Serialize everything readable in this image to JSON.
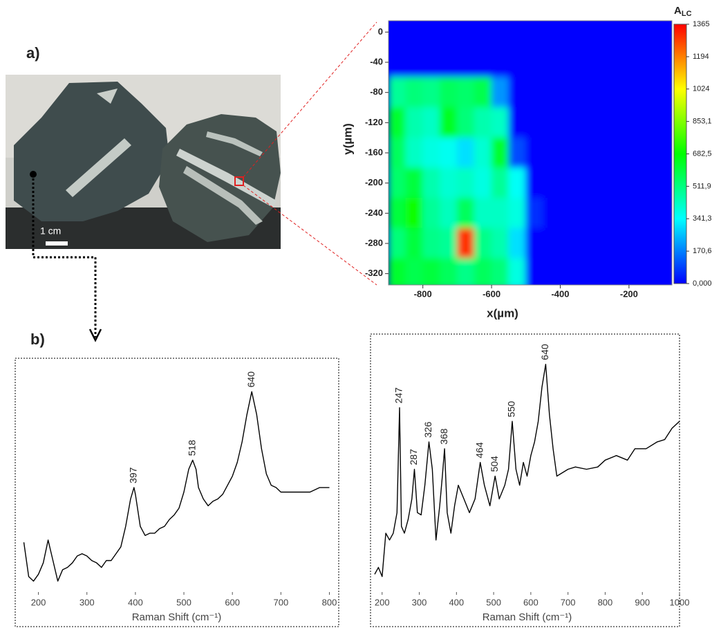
{
  "panel_labels": [
    "a)",
    "b)"
  ],
  "photo": {
    "scale_label": "1 cm"
  },
  "chart_data": [
    {
      "type": "heatmap",
      "xlabel": "x(µm)",
      "ylabel": "y(µm)",
      "x": [
        -875,
        -825,
        -775,
        -725,
        -675,
        -625,
        -575,
        -525,
        -475,
        -425,
        -375,
        -325,
        -275,
        -225,
        -175,
        -125,
        -75
      ],
      "y": [
        0,
        -40,
        -80,
        -120,
        -160,
        -200,
        -240,
        -280,
        -320
      ],
      "z": [
        [
          0,
          0,
          0,
          0,
          0,
          0,
          0,
          0,
          0,
          0,
          0,
          0,
          0,
          0,
          0,
          0,
          0
        ],
        [
          0,
          0,
          0,
          0,
          0,
          0,
          0,
          0,
          0,
          0,
          0,
          0,
          0,
          0,
          0,
          0,
          0
        ],
        [
          480,
          520,
          500,
          560,
          540,
          580,
          200,
          0,
          0,
          0,
          0,
          0,
          0,
          0,
          0,
          0,
          0
        ],
        [
          620,
          450,
          420,
          640,
          520,
          450,
          420,
          0,
          0,
          0,
          0,
          0,
          0,
          0,
          0,
          0,
          0
        ],
        [
          560,
          420,
          380,
          360,
          300,
          400,
          620,
          100,
          0,
          0,
          0,
          0,
          0,
          0,
          0,
          0,
          0
        ],
        [
          540,
          600,
          450,
          400,
          420,
          380,
          480,
          350,
          0,
          0,
          0,
          0,
          0,
          0,
          0,
          0,
          0
        ],
        [
          600,
          700,
          480,
          430,
          560,
          420,
          420,
          380,
          60,
          0,
          0,
          0,
          0,
          0,
          0,
          0,
          0
        ],
        [
          520,
          600,
          500,
          480,
          1300,
          500,
          450,
          300,
          0,
          0,
          0,
          0,
          0,
          0,
          0,
          0,
          0
        ],
        [
          620,
          580,
          600,
          560,
          500,
          560,
          520,
          380,
          0,
          0,
          0,
          0,
          0,
          0,
          0,
          0,
          0
        ]
      ],
      "xlim": [
        -900,
        -75
      ],
      "ylim": [
        -335,
        15
      ],
      "xticks": [
        -800,
        -600,
        -400,
        -200
      ],
      "yticks": [
        0,
        -40,
        -80,
        -120,
        -160,
        -200,
        -240,
        -280,
        -320
      ],
      "colorbar": {
        "title": "A",
        "subscript": "LC",
        "zlim": [
          0,
          1365
        ],
        "colors": [
          "#0000ff",
          "#00ffff",
          "#00ff00",
          "#ffff00",
          "#ff0000"
        ],
        "ticks": [
          1365,
          1194,
          1024,
          {
            "value": 853.1,
            "label": "853,1"
          },
          {
            "value": 682.5,
            "label": "682,5"
          },
          {
            "value": 511.9,
            "label": "511,9"
          },
          {
            "value": 341.3,
            "label": "341,3"
          },
          {
            "value": 170.6,
            "label": "170,6"
          },
          {
            "value": 0,
            "label": "0,000"
          }
        ]
      }
    },
    {
      "type": "line",
      "xlabel": "Raman Shift (cm⁻¹)",
      "color": "#000000",
      "x": [
        170,
        180,
        190,
        200,
        210,
        220,
        230,
        240,
        250,
        260,
        270,
        280,
        290,
        300,
        310,
        320,
        330,
        340,
        350,
        360,
        370,
        380,
        390,
        397,
        400,
        410,
        420,
        430,
        440,
        450,
        460,
        470,
        480,
        490,
        500,
        510,
        518,
        525,
        530,
        540,
        550,
        560,
        570,
        580,
        590,
        600,
        610,
        620,
        630,
        640,
        650,
        660,
        670,
        680,
        690,
        700,
        720,
        740,
        760,
        780,
        800
      ],
      "values": [
        23,
        8,
        6,
        9,
        14,
        24,
        15,
        6,
        11,
        12,
        14,
        17,
        18,
        17,
        15,
        14,
        12,
        15,
        15,
        18,
        21,
        30,
        42,
        47,
        44,
        30,
        26,
        27,
        27,
        29,
        30,
        33,
        35,
        38,
        45,
        55,
        59,
        55,
        47,
        42,
        39,
        41,
        42,
        44,
        48,
        52,
        58,
        67,
        79,
        89,
        79,
        64,
        53,
        48,
        47,
        45,
        45,
        45,
        45,
        47,
        47
      ],
      "peaks": [
        397,
        518,
        640
      ],
      "xlim": [
        165,
        805
      ],
      "ylim": [
        0,
        100
      ],
      "xticks": [
        200,
        300,
        400,
        500,
        600,
        700,
        800
      ]
    },
    {
      "type": "line",
      "xlabel": "Raman Shift (cm⁻¹)",
      "color": "#000000",
      "x": [
        180,
        190,
        200,
        210,
        220,
        230,
        240,
        247,
        252,
        260,
        270,
        280,
        287,
        295,
        305,
        315,
        326,
        335,
        345,
        355,
        362,
        368,
        375,
        385,
        395,
        405,
        420,
        435,
        450,
        464,
        475,
        490,
        504,
        515,
        530,
        540,
        550,
        560,
        570,
        580,
        590,
        600,
        610,
        620,
        630,
        640,
        650,
        660,
        670,
        680,
        700,
        720,
        750,
        780,
        800,
        830,
        860,
        880,
        910,
        940,
        960,
        980,
        1000
      ],
      "values": [
        9,
        12,
        8,
        27,
        24,
        27,
        36,
        82,
        30,
        27,
        33,
        42,
        55,
        36,
        35,
        48,
        67,
        55,
        24,
        39,
        52,
        64,
        36,
        27,
        39,
        48,
        42,
        36,
        42,
        58,
        48,
        39,
        52,
        42,
        48,
        55,
        76,
        55,
        48,
        58,
        52,
        61,
        67,
        76,
        91,
        101,
        79,
        64,
        52,
        53,
        55,
        56,
        55,
        56,
        59,
        61,
        59,
        64,
        64,
        67,
        68,
        73,
        76
      ],
      "peaks": [
        247,
        287,
        326,
        368,
        464,
        504,
        550,
        640
      ],
      "xlim": [
        180,
        1000
      ],
      "ylim": [
        0,
        110
      ],
      "xticks": [
        200,
        300,
        400,
        500,
        600,
        700,
        800,
        900,
        1000
      ]
    }
  ]
}
